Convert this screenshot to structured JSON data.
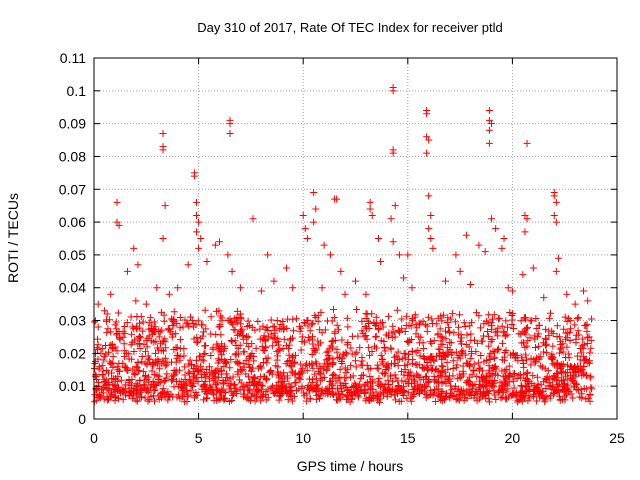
{
  "chart_data": {
    "type": "scatter",
    "title": "Day 310 of 2017, Rate Of TEC Index for receiver ptld",
    "xlabel": "GPS time / hours",
    "ylabel": "ROTI / TECUs",
    "xlim": [
      0,
      25
    ],
    "ylim": [
      0,
      0.11
    ],
    "x_ticks": [
      0,
      5,
      10,
      15,
      20,
      25
    ],
    "x_tick_labels": [
      "0",
      "5",
      "10",
      "15",
      "20",
      "25"
    ],
    "y_ticks": [
      0,
      0.01,
      0.02,
      0.03,
      0.04,
      0.05,
      0.06,
      0.07,
      0.08,
      0.09,
      0.1,
      0.11
    ],
    "y_tick_labels": [
      "0",
      "0.01",
      "0.02",
      "0.03",
      "0.04",
      "0.05",
      "0.06",
      "0.07",
      "0.08",
      "0.09",
      "0.1",
      "0.11"
    ],
    "grid": true,
    "marker": "+",
    "color": "#ff0000",
    "series": [
      {
        "points": [
          [
            1.1,
            0.066
          ],
          [
            1.1,
            0.06
          ],
          [
            1.2,
            0.059
          ],
          [
            1.6,
            0.045
          ],
          [
            1.9,
            0.052
          ],
          [
            2.1,
            0.047
          ],
          [
            3.3,
            0.087
          ],
          [
            3.3,
            0.083
          ],
          [
            3.3,
            0.082
          ],
          [
            3.4,
            0.065
          ],
          [
            3.3,
            0.055
          ],
          [
            3.0,
            0.04
          ],
          [
            4.8,
            0.075
          ],
          [
            4.8,
            0.074
          ],
          [
            4.9,
            0.066
          ],
          [
            4.9,
            0.062
          ],
          [
            5.0,
            0.06
          ],
          [
            4.9,
            0.057
          ],
          [
            5.1,
            0.055
          ],
          [
            5.0,
            0.052
          ],
          [
            4.5,
            0.047
          ],
          [
            5.4,
            0.048
          ],
          [
            6.0,
            0.054
          ],
          [
            5.8,
            0.053
          ],
          [
            6.5,
            0.091
          ],
          [
            6.5,
            0.09
          ],
          [
            6.5,
            0.087
          ],
          [
            6.4,
            0.05
          ],
          [
            6.6,
            0.045
          ],
          [
            7.6,
            0.061
          ],
          [
            8.3,
            0.05
          ],
          [
            8.6,
            0.042
          ],
          [
            9.2,
            0.046
          ],
          [
            10.0,
            0.062
          ],
          [
            10.1,
            0.058
          ],
          [
            10.2,
            0.055
          ],
          [
            10.5,
            0.069
          ],
          [
            10.6,
            0.064
          ],
          [
            10.5,
            0.06
          ],
          [
            11.0,
            0.053
          ],
          [
            11.5,
            0.067
          ],
          [
            11.6,
            0.067
          ],
          [
            11.3,
            0.05
          ],
          [
            11.8,
            0.045
          ],
          [
            12.5,
            0.042
          ],
          [
            13.2,
            0.066
          ],
          [
            13.2,
            0.064
          ],
          [
            13.3,
            0.062
          ],
          [
            13.6,
            0.055
          ],
          [
            13.7,
            0.048
          ],
          [
            14.3,
            0.101
          ],
          [
            14.3,
            0.1
          ],
          [
            14.3,
            0.082
          ],
          [
            14.3,
            0.081
          ],
          [
            14.4,
            0.065
          ],
          [
            14.2,
            0.061
          ],
          [
            14.3,
            0.054
          ],
          [
            14.6,
            0.05
          ],
          [
            15.0,
            0.05
          ],
          [
            15.2,
            0.04
          ],
          [
            15.9,
            0.094
          ],
          [
            15.9,
            0.093
          ],
          [
            15.9,
            0.086
          ],
          [
            16.0,
            0.085
          ],
          [
            15.9,
            0.081
          ],
          [
            16.0,
            0.068
          ],
          [
            16.1,
            0.062
          ],
          [
            16.0,
            0.058
          ],
          [
            16.1,
            0.055
          ],
          [
            16.2,
            0.052
          ],
          [
            17.3,
            0.05
          ],
          [
            17.8,
            0.056
          ],
          [
            18.4,
            0.053
          ],
          [
            18.7,
            0.051
          ],
          [
            18.9,
            0.094
          ],
          [
            18.9,
            0.091
          ],
          [
            19.0,
            0.09
          ],
          [
            18.9,
            0.088
          ],
          [
            18.9,
            0.084
          ],
          [
            19.0,
            0.061
          ],
          [
            19.2,
            0.058
          ],
          [
            19.6,
            0.055
          ],
          [
            19.5,
            0.052
          ],
          [
            20.5,
            0.044
          ],
          [
            20.7,
            0.084
          ],
          [
            20.6,
            0.062
          ],
          [
            20.7,
            0.061
          ],
          [
            20.6,
            0.057
          ],
          [
            21.0,
            0.046
          ],
          [
            22.0,
            0.069
          ],
          [
            22.0,
            0.068
          ],
          [
            22.1,
            0.066
          ],
          [
            22.0,
            0.062
          ],
          [
            22.1,
            0.06
          ],
          [
            22.2,
            0.049
          ],
          [
            22.1,
            0.045
          ],
          [
            22.6,
            0.038
          ],
          [
            23.4,
            0.039
          ],
          [
            23.6,
            0.036
          ],
          [
            0.2,
            0.035
          ],
          [
            0.5,
            0.033
          ],
          [
            2.5,
            0.035
          ],
          [
            3.6,
            0.038
          ],
          [
            7.0,
            0.04
          ],
          [
            9.5,
            0.04
          ],
          [
            12.0,
            0.038
          ],
          [
            16.8,
            0.042
          ],
          [
            19.8,
            0.04
          ],
          [
            21.5,
            0.037
          ],
          [
            0.8,
            0.038
          ],
          [
            2.0,
            0.036
          ],
          [
            4.0,
            0.04
          ],
          [
            8.0,
            0.039
          ],
          [
            13.0,
            0.038
          ],
          [
            17.5,
            0.045
          ],
          [
            18.0,
            0.041
          ],
          [
            20.0,
            0.039
          ],
          [
            23.0,
            0.035
          ],
          [
            10.9,
            0.04
          ],
          [
            14.8,
            0.043
          ]
        ]
      }
    ],
    "dense_band": {
      "x_range": [
        0,
        23.8
      ],
      "typical_y_range": [
        0.005,
        0.03
      ]
    }
  }
}
